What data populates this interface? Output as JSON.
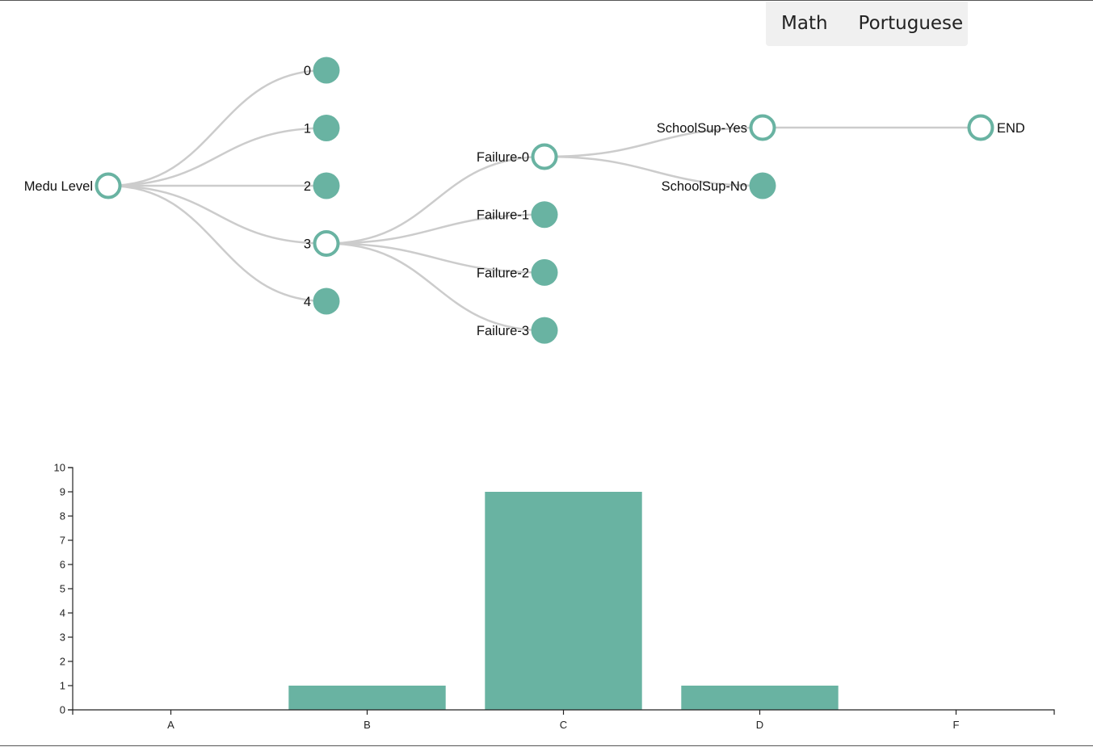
{
  "tabs": [
    {
      "id": "math",
      "label": "Math"
    },
    {
      "id": "portuguese",
      "label": "Portuguese"
    }
  ],
  "colors": {
    "node": "#69b3a2",
    "link": "#cccccc",
    "bar": "#69b3a2"
  },
  "tree": {
    "name": "Medu Level",
    "expanded": true,
    "children": [
      {
        "name": "0",
        "expanded": false
      },
      {
        "name": "1",
        "expanded": false
      },
      {
        "name": "2",
        "expanded": false
      },
      {
        "name": "3",
        "expanded": true,
        "children": [
          {
            "name": "Failure-0",
            "expanded": true,
            "children": [
              {
                "name": "SchoolSup-Yes",
                "expanded": true,
                "children": [
                  {
                    "name": "END",
                    "expanded": true
                  }
                ]
              },
              {
                "name": "SchoolSup-No",
                "expanded": false
              }
            ]
          },
          {
            "name": "Failure-1",
            "expanded": false
          },
          {
            "name": "Failure-2",
            "expanded": false
          },
          {
            "name": "Failure-3",
            "expanded": false
          }
        ]
      },
      {
        "name": "4",
        "expanded": false
      }
    ]
  },
  "chart_data": {
    "type": "bar",
    "categories": [
      "A",
      "B",
      "C",
      "D",
      "F"
    ],
    "values": [
      0,
      1,
      9,
      1,
      0
    ],
    "ylim": [
      0,
      10
    ],
    "yticks": [
      0,
      1,
      2,
      3,
      4,
      5,
      6,
      7,
      8,
      9,
      10
    ],
    "title": "",
    "xlabel": "",
    "ylabel": "",
    "grid": false
  }
}
